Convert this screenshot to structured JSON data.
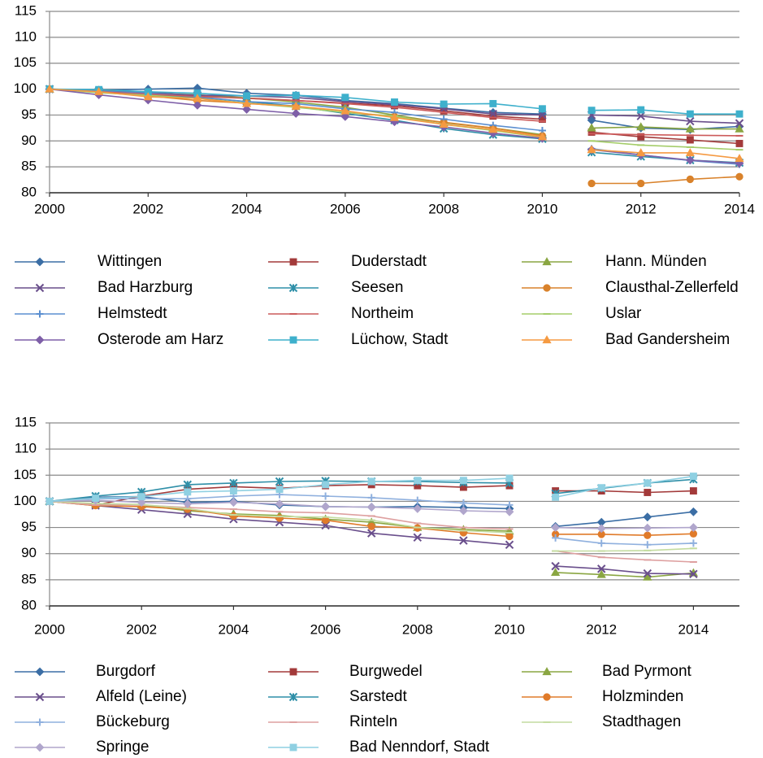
{
  "chart_data": [
    {
      "type": "line",
      "legend": "bottom",
      "grid": true,
      "x": [
        2000,
        2001,
        2002,
        2003,
        2004,
        2005,
        2006,
        2007,
        2008,
        2009,
        2010,
        null,
        2011,
        2012,
        2013,
        2014
      ],
      "xlim": [
        2000,
        2014
      ],
      "xticks": [
        2000,
        2002,
        2004,
        2006,
        2008,
        2010,
        2012,
        2014
      ],
      "ylim": [
        80,
        115
      ],
      "yticks": [
        80,
        85,
        90,
        95,
        100,
        105,
        110,
        115
      ],
      "series": [
        {
          "name": "Wittingen",
          "color": "#3b6ea5",
          "marker": "diamond",
          "values": [
            100,
            99.8,
            100,
            100.2,
            99.2,
            98.8,
            97.8,
            97.2,
            96.3,
            95.5,
            95.2,
            null,
            94,
            92.5,
            92.2,
            92.8
          ]
        },
        {
          "name": "Duderstadt",
          "color": "#a33a3a",
          "marker": "square",
          "values": [
            100,
            99.7,
            99.5,
            98.6,
            98.3,
            97.8,
            97.3,
            96.8,
            95.8,
            94.8,
            94.2,
            null,
            91.7,
            90.8,
            90.2,
            89.5
          ]
        },
        {
          "name": "Hann. Münden",
          "color": "#8aa642",
          "marker": "triangle",
          "values": [
            100,
            99.5,
            99.2,
            98.9,
            98.3,
            97.5,
            96.5,
            95,
            93.5,
            92.5,
            91.2,
            null,
            92.5,
            92.7,
            92.3,
            92.3
          ]
        },
        {
          "name": "Bad Harzburg",
          "color": "#6a4f8c",
          "marker": "x",
          "values": [
            100,
            99.6,
            99.3,
            98.8,
            98.7,
            98.4,
            97.6,
            97,
            96.2,
            95.2,
            95,
            null,
            95,
            94.8,
            93.8,
            93.4
          ]
        },
        {
          "name": "Seesen",
          "color": "#2f8fa8",
          "marker": "star",
          "values": [
            100,
            99.6,
            99,
            98.4,
            97.6,
            96.7,
            95.3,
            94,
            92.4,
            91.2,
            90.4,
            null,
            87.8,
            87,
            86.3,
            85.8
          ]
        },
        {
          "name": "Clausthal-Zellerfeld",
          "color": "#d9822b",
          "marker": "circle",
          "values": [
            100,
            99.4,
            98.7,
            97.8,
            97.3,
            96.6,
            95.5,
            94.7,
            93.6,
            92.5,
            91,
            null,
            81.8,
            81.8,
            82.6,
            83.1
          ]
        },
        {
          "name": "Helmstedt",
          "color": "#5b8fd0",
          "marker": "plus",
          "values": [
            100,
            99.6,
            99.2,
            98.5,
            97.6,
            97.2,
            96.2,
            95.5,
            94.2,
            93,
            92,
            null,
            88.5,
            87.3,
            86.2,
            85.5
          ]
        },
        {
          "name": "Northeim",
          "color": "#cc5a5a",
          "marker": "dash",
          "values": [
            100,
            99.5,
            99,
            98.6,
            98.2,
            97.8,
            97.2,
            96.5,
            95.5,
            94.5,
            93.8,
            null,
            91.4,
            91.2,
            91.1,
            91
          ]
        },
        {
          "name": "Uslar",
          "color": "#a5cd6a",
          "marker": "dash",
          "values": [
            100,
            99.3,
            98.8,
            98.2,
            97.3,
            96.5,
            95.5,
            94.8,
            93.2,
            92,
            90.7,
            null,
            90,
            89.2,
            88.8,
            88.3
          ]
        },
        {
          "name": "Osterode am Harz",
          "color": "#7e5fa8",
          "marker": "diamond",
          "values": [
            100,
            98.9,
            97.9,
            96.9,
            96.1,
            95.3,
            94.7,
            93.7,
            92.7,
            91.5,
            90.5,
            null,
            88.3,
            87.3,
            86.3,
            85.7
          ]
        },
        {
          "name": "Lüchow, Stadt",
          "color": "#3eb0cc",
          "marker": "square",
          "values": [
            100,
            99.9,
            99.5,
            99.2,
            98.7,
            98.8,
            98.4,
            97.5,
            97.1,
            97.2,
            96.2,
            null,
            95.9,
            96,
            95.2,
            95.2
          ]
        },
        {
          "name": "Bad Gandersheim",
          "color": "#f59a42",
          "marker": "triangle",
          "values": [
            100,
            99.5,
            98.5,
            98.2,
            97.2,
            96.7,
            95.8,
            94.5,
            93.2,
            92.2,
            90.8,
            null,
            88.3,
            87.7,
            87.7,
            86.6
          ]
        }
      ]
    },
    {
      "type": "line",
      "legend": "bottom",
      "grid": true,
      "x": [
        2000,
        2001,
        2002,
        2003,
        2004,
        2005,
        2006,
        2007,
        2008,
        2009,
        2010,
        null,
        2011,
        2012,
        2013,
        2014
      ],
      "xlim": [
        2000,
        2015
      ],
      "xticks": [
        2000,
        2002,
        2004,
        2006,
        2008,
        2010,
        2012,
        2014
      ],
      "ylim": [
        80,
        115
      ],
      "yticks": [
        80,
        85,
        90,
        95,
        100,
        105,
        110,
        115
      ],
      "series": [
        {
          "name": "Burgdorf",
          "color": "#3b6ea5",
          "marker": "diamond",
          "values": [
            100,
            100.8,
            100.9,
            99.8,
            100,
            99.3,
            99,
            98.9,
            99,
            98.8,
            98.6,
            null,
            95.2,
            96,
            97,
            98
          ]
        },
        {
          "name": "Burgwedel",
          "color": "#a33a3a",
          "marker": "square",
          "values": [
            100,
            99.3,
            101,
            102.3,
            102.8,
            102.5,
            103,
            103.2,
            103,
            102.7,
            103,
            null,
            102,
            102,
            101.7,
            102
          ]
        },
        {
          "name": "Bad Pyrmont",
          "color": "#8aa642",
          "marker": "triangle",
          "values": [
            100,
            99.5,
            99.3,
            98.2,
            97.6,
            97.3,
            96.6,
            96,
            95,
            94.6,
            94.3,
            null,
            86.4,
            86,
            85.5,
            86.3
          ]
        },
        {
          "name": "Alfeld (Leine)",
          "color": "#6a4f8c",
          "marker": "x",
          "values": [
            100,
            99.2,
            98.4,
            97.6,
            96.6,
            96,
            95.4,
            93.9,
            93.1,
            92.5,
            91.7,
            null,
            87.6,
            87.1,
            86.2,
            86.1
          ]
        },
        {
          "name": "Sarstedt",
          "color": "#2f8fa8",
          "marker": "star",
          "values": [
            100,
            101,
            101.8,
            103.2,
            103.5,
            103.8,
            103.9,
            103.8,
            103.8,
            103.6,
            103.5,
            null,
            101.5,
            102.5,
            103.5,
            104.2
          ]
        },
        {
          "name": "Holzminden",
          "color": "#e07b2a",
          "marker": "circle",
          "values": [
            100,
            99.2,
            99,
            98.5,
            97.2,
            96.8,
            96.4,
            95.2,
            94.9,
            94,
            93.3,
            null,
            93.7,
            93.7,
            93.5,
            93.8
          ]
        },
        {
          "name": "Bückeburg",
          "color": "#8fb0de",
          "marker": "plus",
          "values": [
            100,
            100.5,
            100.5,
            100.5,
            101,
            101.3,
            101,
            100.7,
            100.2,
            99.7,
            99.3,
            null,
            93,
            92,
            91.7,
            92
          ]
        },
        {
          "name": "Rinteln",
          "color": "#dea0a0",
          "marker": "dash",
          "values": [
            100,
            99.3,
            99.3,
            98.8,
            98.5,
            98,
            97.8,
            97.2,
            95.8,
            95,
            94.7,
            null,
            90.5,
            89.3,
            88.8,
            88.4
          ]
        },
        {
          "name": "Stadthagen",
          "color": "#c4dca0",
          "marker": "dash",
          "values": [
            100,
            99.6,
            99.4,
            98.6,
            97.4,
            97.1,
            97,
            96.4,
            95,
            94.4,
            94,
            null,
            90.5,
            90.5,
            90.6,
            91
          ]
        },
        {
          "name": "Springe",
          "color": "#b0a6cc",
          "marker": "diamond",
          "values": [
            100,
            100.2,
            99.8,
            99.5,
            99.8,
            99.5,
            99,
            98.9,
            98.6,
            98.2,
            98,
            null,
            95,
            94.8,
            94.9,
            95
          ]
        },
        {
          "name": "Bad Nenndorf, Stadt",
          "color": "#8fd0e2",
          "marker": "square",
          "values": [
            100,
            100.6,
            100.9,
            101.8,
            102,
            102.3,
            103.2,
            103.8,
            104,
            104,
            104.4,
            null,
            100.8,
            102.6,
            103.5,
            104.8
          ]
        }
      ]
    }
  ]
}
